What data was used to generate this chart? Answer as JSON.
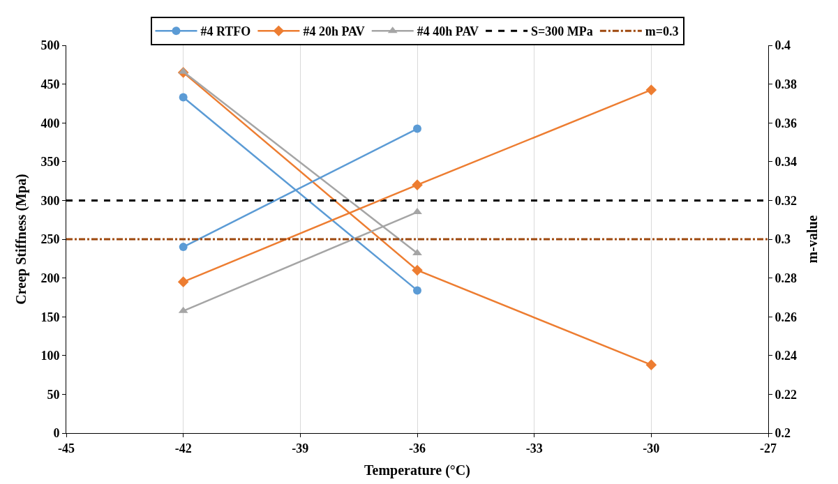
{
  "chart_data": {
    "type": "line",
    "xlabel": "Temperature (°C)",
    "ylabel": "Creep Stiffness (Mpa)",
    "y2label": "m-value",
    "xlim": [
      -45,
      -27
    ],
    "xticks": [
      -45,
      -42,
      -39,
      -36,
      -33,
      -30,
      -27
    ],
    "ylim": [
      0,
      500
    ],
    "yticks": [
      0,
      50,
      100,
      150,
      200,
      250,
      300,
      350,
      400,
      450,
      500
    ],
    "y2lim": [
      0.2,
      0.4
    ],
    "y2ticks": [
      0.2,
      0.22,
      0.24,
      0.26,
      0.28,
      0.3,
      0.32,
      0.34,
      0.36,
      0.38,
      0.4
    ],
    "grid": "x",
    "legend": "top",
    "series": [
      {
        "name": "#4 RTFO",
        "color": "#5b9bd5",
        "marker": "circle",
        "x": [
          -42,
          -36
        ],
        "values": [
          433,
          184
        ]
      },
      {
        "color": "#5b9bd5",
        "marker": "circle",
        "axis": "y2",
        "x": [
          -42,
          -36
        ],
        "values": [
          0.296,
          0.357
        ]
      },
      {
        "name": "#4 20h PAV",
        "color": "#ed7d31",
        "marker": "diamond",
        "x": [
          -42,
          -36,
          -30
        ],
        "values": [
          465,
          210,
          88
        ]
      },
      {
        "color": "#ed7d31",
        "marker": "diamond",
        "axis": "y2",
        "x": [
          -42,
          -36,
          -30
        ],
        "values": [
          0.278,
          0.328,
          0.377
        ]
      },
      {
        "name": "#4 40h PAV",
        "color": "#a5a5a5",
        "marker": "triangle",
        "x": [
          -42,
          -36
        ],
        "values": [
          466,
          232
        ]
      },
      {
        "color": "#a5a5a5",
        "marker": "triangle",
        "axis": "y2",
        "x": [
          -42,
          -36
        ],
        "values": [
          0.263,
          0.314
        ]
      }
    ],
    "ref_lines": [
      {
        "axis": "y",
        "value": 300,
        "label": "S=300 MPa",
        "color": "#000000",
        "line_style": "dashed"
      },
      {
        "axis": "y2",
        "value": 0.3,
        "label": "m=0.3",
        "color": "#9e480e",
        "line_style": "dashdot"
      }
    ]
  }
}
